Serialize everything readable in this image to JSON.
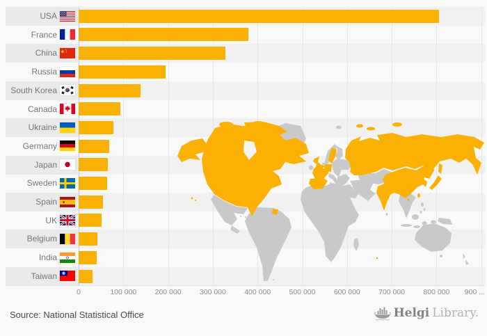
{
  "chart_data": {
    "type": "bar",
    "orientation": "horizontal",
    "title": "",
    "categories": [
      "USA",
      "France",
      "China",
      "Russia",
      "South Korea",
      "Canada",
      "Ukraine",
      "Germany",
      "Japan",
      "Sweden",
      "Spain",
      "UK",
      "Belgium",
      "India",
      "Taiwan"
    ],
    "values": [
      805000,
      380000,
      328000,
      195000,
      138000,
      94000,
      77000,
      69000,
      65000,
      64000,
      55000,
      51000,
      42000,
      40000,
      31000
    ],
    "flags": [
      "us",
      "fr",
      "cn",
      "ru",
      "kr",
      "ca",
      "ua",
      "de",
      "jp",
      "se",
      "es",
      "gb",
      "be",
      "in",
      "tw"
    ],
    "x_tick_labels": [
      "0",
      "100 000",
      "200 000",
      "300 000",
      "400 000",
      "500 000",
      "600 000",
      "700 000",
      "800 000",
      "900 ..."
    ],
    "x_tick_values": [
      0,
      100000,
      200000,
      300000,
      400000,
      500000,
      600000,
      700000,
      800000,
      900000
    ],
    "xlim": [
      0,
      910000
    ],
    "grid": true,
    "bar_color": "#fab104",
    "row_stripe_color": "#eaeaea",
    "map": {
      "base_color": "#c9c9c9",
      "highlight_color": "#fab104",
      "highlighted_countries": [
        "USA",
        "France",
        "China",
        "Russia",
        "South Korea",
        "Canada",
        "Ukraine",
        "Germany",
        "Japan",
        "Sweden",
        "Spain",
        "UK",
        "Belgium",
        "India",
        "Taiwan"
      ]
    }
  },
  "footer": {
    "source": "Source: National Statistical Office",
    "logo": {
      "brand_bold": "Helgi",
      "brand_light": "Library.",
      "icon": "bar-chart-boat-icon"
    }
  }
}
